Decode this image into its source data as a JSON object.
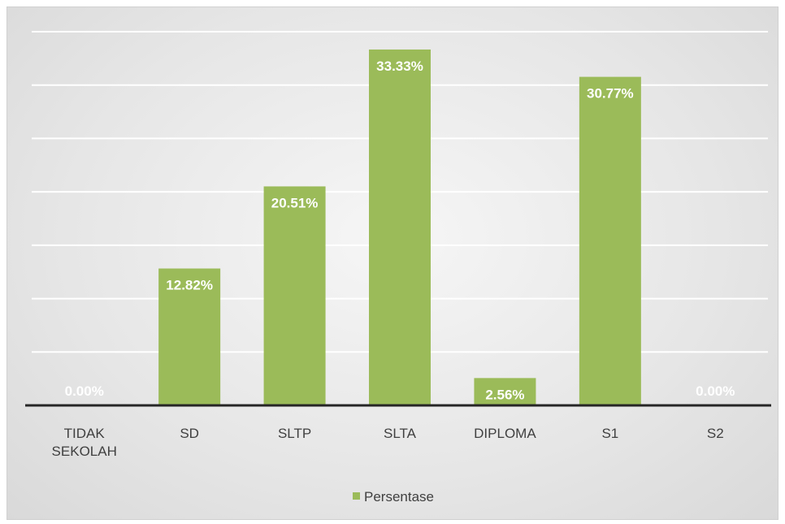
{
  "chart_data": {
    "type": "bar",
    "categories": [
      [
        "TIDAK",
        "SEKOLAH"
      ],
      [
        "SD"
      ],
      [
        "SLTP"
      ],
      [
        "SLTA"
      ],
      [
        "DIPLOMA"
      ],
      [
        "S1"
      ],
      [
        "S2"
      ]
    ],
    "series": [
      {
        "name": "Persentase",
        "values": [
          0.0,
          12.82,
          20.51,
          33.33,
          2.56,
          30.77,
          0.0
        ],
        "labels": [
          "0.00%",
          "12.82%",
          "20.51%",
          "33.33%",
          "2.56%",
          "30.77%",
          "0.00%"
        ]
      }
    ],
    "ylim": [
      0,
      35
    ],
    "grid": true,
    "legend": "bottom",
    "colors": {
      "bar": "#9bbb59",
      "grid": "#ffffff",
      "axis": "#262626",
      "text": "#404040"
    }
  }
}
